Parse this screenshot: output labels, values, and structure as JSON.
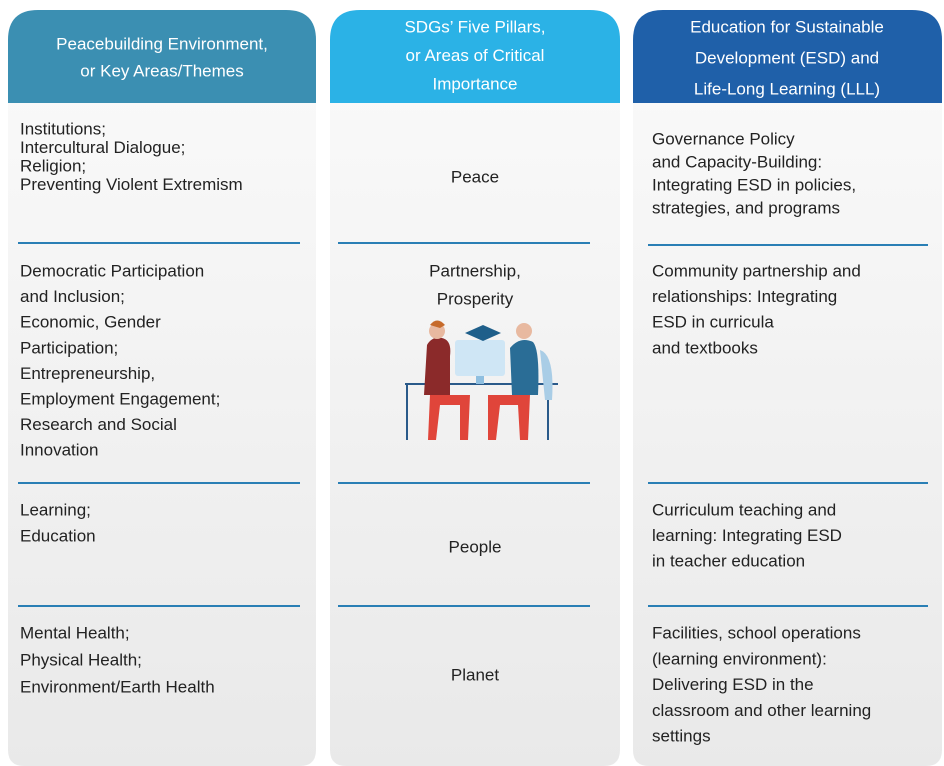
{
  "columns": [
    {
      "header": [
        "Peacebuilding Environment,",
        "or Key Areas/Themes"
      ],
      "rows": [
        [
          "Institutions;",
          "Intercultural Dialogue;",
          "Religion;",
          "Preventing Violent Extremism"
        ],
        [
          "Democratic Participation",
          "and Inclusion;",
          "Economic, Gender",
          "Participation;",
          "Entrepreneurship,",
          "Employment Engagement;",
          "Research and Social",
          "Innovation"
        ],
        [
          "Learning;",
          "Education"
        ],
        [
          "Mental Health;",
          "Physical Health;",
          "Environment/Earth Health"
        ]
      ]
    },
    {
      "header": [
        "SDGs’ Five Pillars,",
        "or Areas of Critical",
        "Importance"
      ],
      "rows": [
        [
          "Peace"
        ],
        [
          "Partnership,",
          "Prosperity"
        ],
        [
          "People"
        ],
        [
          "Planet"
        ]
      ]
    },
    {
      "header": [
        "Education for Sustainable",
        "Development (ESD) and",
        "Life-Long Learning (LLL)"
      ],
      "rows": [
        [
          "Governance Policy",
          "and Capacity-Building:",
          "Integrating ESD in policies,",
          "strategies, and programs"
        ],
        [
          "Community partnership and",
          "relationships: Integrating",
          "ESD in curricula",
          "and textbooks"
        ],
        [
          "Curriculum teaching and",
          "learning: Integrating ESD",
          "in teacher education"
        ],
        [
          "Facilities, school operations",
          "(learning environment):",
          "Delivering ESD in the",
          "classroom and other learning",
          "settings"
        ]
      ]
    }
  ]
}
